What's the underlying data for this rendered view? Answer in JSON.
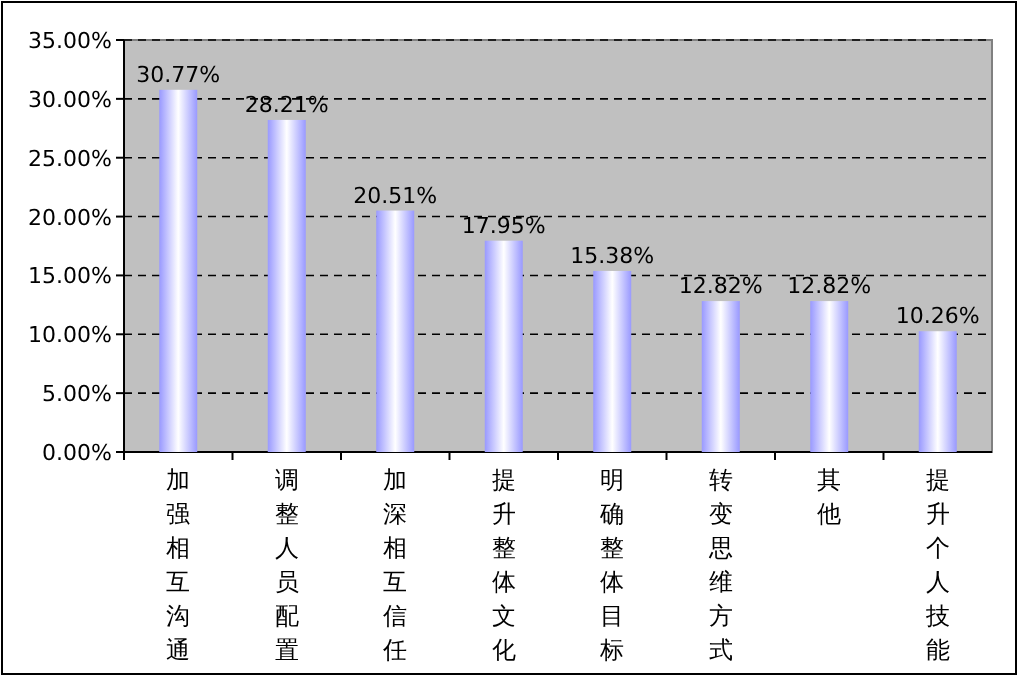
{
  "chart_data": {
    "type": "bar",
    "categories": [
      "加强相互沟通",
      "调整人员配置",
      "加深相互信任",
      "提升整体文化",
      "明确整体目标",
      "转变思维方式",
      "其他",
      "提升个人技能"
    ],
    "values": [
      30.77,
      28.21,
      20.51,
      17.95,
      15.38,
      12.82,
      12.82,
      10.26
    ],
    "value_labels": [
      "30.77%",
      "28.21%",
      "20.51%",
      "17.95%",
      "15.38%",
      "12.82%",
      "12.82%",
      "10.26%"
    ],
    "color": "#9999ff",
    "ylim": [
      0,
      35
    ],
    "yticks": [
      {
        "value": 0,
        "label": "0.00%"
      },
      {
        "value": 5,
        "label": "5.00%"
      },
      {
        "value": 10,
        "label": "10.00%"
      },
      {
        "value": 15,
        "label": "15.00%"
      },
      {
        "value": 20,
        "label": "20.00%"
      },
      {
        "value": 25,
        "label": "25.00%"
      },
      {
        "value": 30,
        "label": "30.00%"
      },
      {
        "value": 35,
        "label": "35.00%"
      }
    ],
    "grid": "y"
  }
}
